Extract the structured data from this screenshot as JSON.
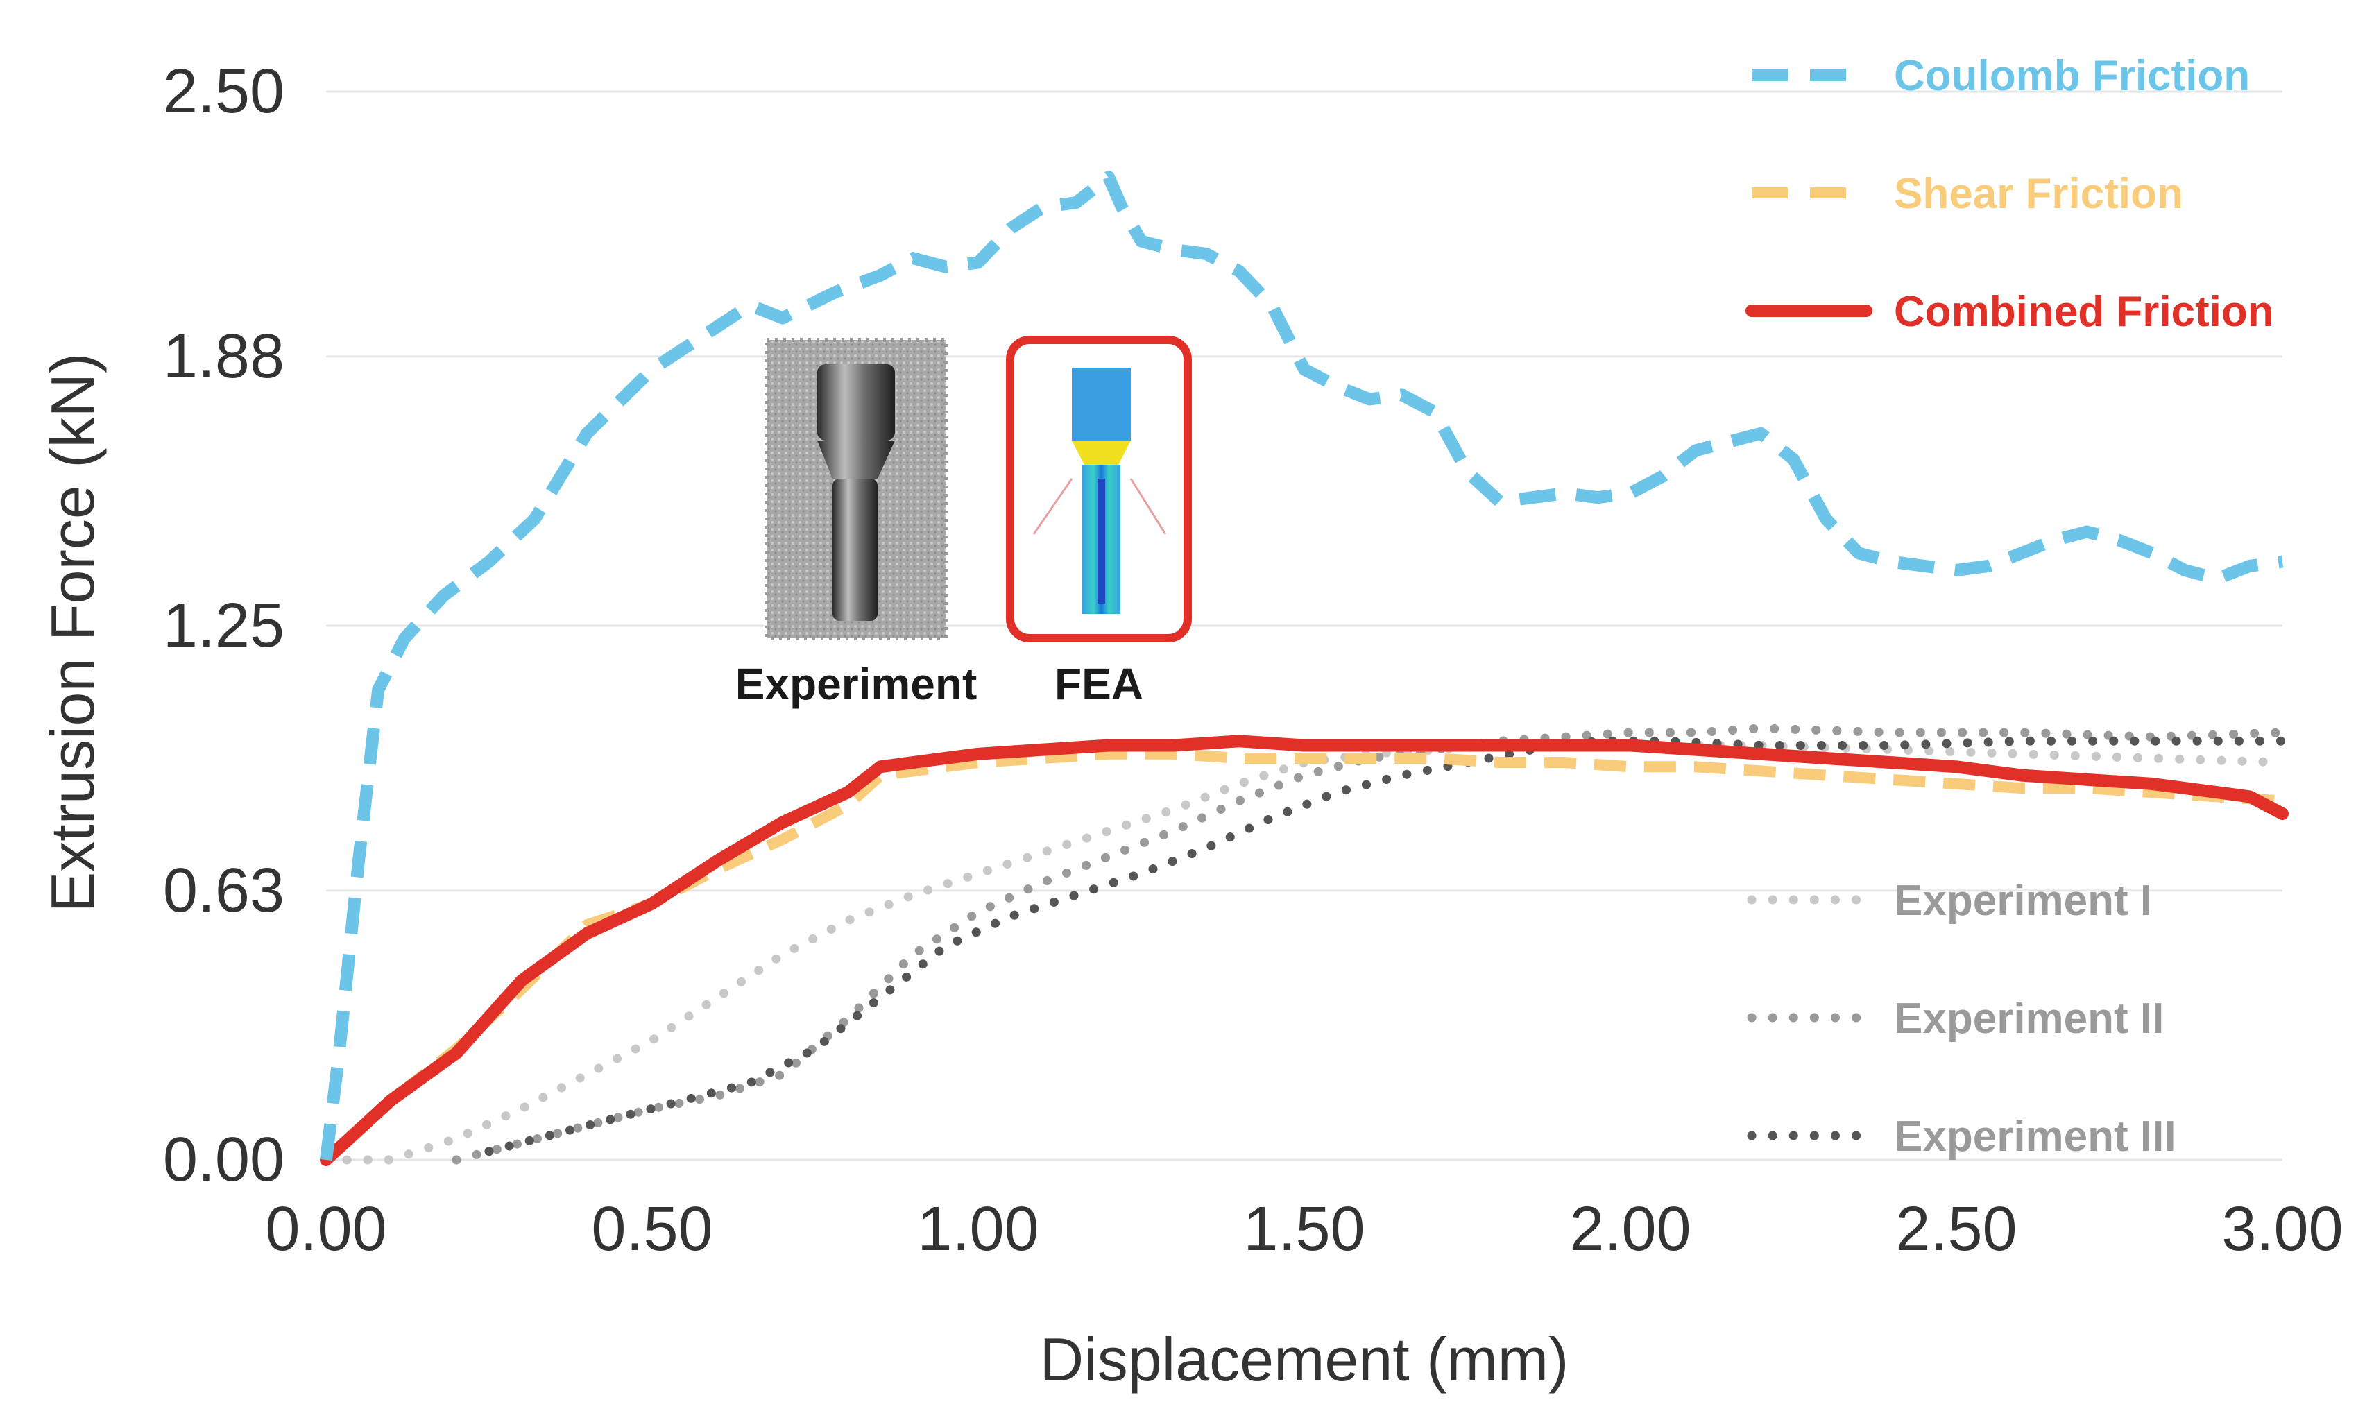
{
  "chart_data": {
    "type": "line",
    "title": "",
    "xlabel": "Displacement (mm)",
    "ylabel": "Extrusion Force (kN)",
    "xlim": [
      0,
      3
    ],
    "ylim": [
      0,
      2.5
    ],
    "x_ticks": [
      "0.00",
      "0.50",
      "1.00",
      "1.50",
      "2.00",
      "2.50",
      "3.00"
    ],
    "y_ticks": [
      "0.00",
      "0.63",
      "1.25",
      "1.88",
      "2.50"
    ],
    "grid": "horizontal",
    "legend_position": "right",
    "series": [
      {
        "name": "Coulomb Friction",
        "color": "#6cc4e8",
        "style": "dashed",
        "x": [
          0.0,
          0.02,
          0.05,
          0.08,
          0.12,
          0.18,
          0.25,
          0.32,
          0.4,
          0.5,
          0.58,
          0.65,
          0.7,
          0.78,
          0.85,
          0.9,
          0.95,
          1.0,
          1.05,
          1.1,
          1.15,
          1.2,
          1.22,
          1.25,
          1.3,
          1.35,
          1.4,
          1.45,
          1.5,
          1.55,
          1.6,
          1.65,
          1.7,
          1.75,
          1.8,
          1.85,
          1.9,
          1.95,
          2.0,
          2.05,
          2.1,
          2.15,
          2.2,
          2.25,
          2.3,
          2.35,
          2.4,
          2.45,
          2.5,
          2.55,
          2.6,
          2.65,
          2.7,
          2.75,
          2.8,
          2.85,
          2.9,
          2.95,
          3.0
        ],
        "values": [
          0.0,
          0.25,
          0.7,
          1.1,
          1.22,
          1.32,
          1.4,
          1.5,
          1.7,
          1.85,
          1.93,
          2.0,
          1.97,
          2.03,
          2.07,
          2.11,
          2.09,
          2.1,
          2.18,
          2.23,
          2.24,
          2.3,
          2.23,
          2.15,
          2.13,
          2.12,
          2.08,
          2.0,
          1.85,
          1.81,
          1.78,
          1.79,
          1.75,
          1.61,
          1.54,
          1.55,
          1.56,
          1.55,
          1.56,
          1.6,
          1.66,
          1.68,
          1.7,
          1.64,
          1.5,
          1.42,
          1.4,
          1.39,
          1.38,
          1.39,
          1.42,
          1.45,
          1.47,
          1.45,
          1.42,
          1.38,
          1.36,
          1.39,
          1.4
        ]
      },
      {
        "name": "Shear Friction",
        "color": "#f8cc7a",
        "style": "dashed",
        "x": [
          0.0,
          0.1,
          0.2,
          0.3,
          0.4,
          0.5,
          0.6,
          0.7,
          0.8,
          0.85,
          0.9,
          1.0,
          1.1,
          1.2,
          1.3,
          1.4,
          1.5,
          1.6,
          1.7,
          1.8,
          1.9,
          2.0,
          2.1,
          2.2,
          2.3,
          2.4,
          2.5,
          2.6,
          2.7,
          2.8,
          2.9,
          3.0
        ],
        "values": [
          0.0,
          0.14,
          0.26,
          0.4,
          0.55,
          0.6,
          0.68,
          0.75,
          0.83,
          0.9,
          0.91,
          0.93,
          0.94,
          0.95,
          0.95,
          0.94,
          0.94,
          0.94,
          0.94,
          0.93,
          0.93,
          0.92,
          0.92,
          0.91,
          0.9,
          0.89,
          0.88,
          0.87,
          0.87,
          0.86,
          0.85,
          0.84
        ]
      },
      {
        "name": "Combined Friction",
        "color": "#e03028",
        "style": "solid",
        "x": [
          0.0,
          0.1,
          0.2,
          0.3,
          0.4,
          0.5,
          0.6,
          0.7,
          0.8,
          0.85,
          0.9,
          1.0,
          1.1,
          1.2,
          1.3,
          1.4,
          1.5,
          1.6,
          1.7,
          1.8,
          1.9,
          2.0,
          2.1,
          2.2,
          2.3,
          2.4,
          2.5,
          2.6,
          2.7,
          2.8,
          2.9,
          2.95,
          3.0
        ],
        "values": [
          0.0,
          0.14,
          0.25,
          0.42,
          0.53,
          0.6,
          0.7,
          0.79,
          0.86,
          0.92,
          0.93,
          0.95,
          0.96,
          0.97,
          0.97,
          0.98,
          0.97,
          0.97,
          0.97,
          0.97,
          0.97,
          0.97,
          0.96,
          0.95,
          0.94,
          0.93,
          0.92,
          0.9,
          0.89,
          0.88,
          0.86,
          0.85,
          0.81
        ]
      },
      {
        "name": "Experiment I",
        "color": "#c8c8c8",
        "style": "dotted",
        "x": [
          0.0,
          0.1,
          0.2,
          0.3,
          0.4,
          0.5,
          0.6,
          0.7,
          0.8,
          0.9,
          1.0,
          1.1,
          1.2,
          1.3,
          1.4,
          1.5,
          1.6,
          1.7,
          1.8,
          1.9,
          2.0,
          2.2,
          2.4,
          2.6,
          2.8,
          3.0
        ],
        "values": [
          0.0,
          0.0,
          0.05,
          0.12,
          0.2,
          0.28,
          0.38,
          0.48,
          0.56,
          0.62,
          0.67,
          0.72,
          0.77,
          0.82,
          0.88,
          0.93,
          0.95,
          0.96,
          0.97,
          0.97,
          0.97,
          0.97,
          0.96,
          0.95,
          0.94,
          0.93
        ]
      },
      {
        "name": "Experiment II",
        "color": "#9a9a9a",
        "style": "dotted",
        "x": [
          0.2,
          0.3,
          0.4,
          0.5,
          0.6,
          0.7,
          0.8,
          0.9,
          1.0,
          1.1,
          1.2,
          1.3,
          1.4,
          1.5,
          1.6,
          1.7,
          1.8,
          1.9,
          2.0,
          2.1,
          2.2,
          2.4,
          2.6,
          2.8,
          3.0
        ],
        "values": [
          0.0,
          0.04,
          0.08,
          0.12,
          0.15,
          0.2,
          0.33,
          0.48,
          0.58,
          0.65,
          0.71,
          0.77,
          0.84,
          0.9,
          0.94,
          0.96,
          0.98,
          0.99,
          1.0,
          1.0,
          1.01,
          1.0,
          1.0,
          0.99,
          1.0
        ]
      },
      {
        "name": "Experiment III",
        "color": "#555555",
        "style": "dotted",
        "x": [
          0.25,
          0.35,
          0.45,
          0.55,
          0.65,
          0.75,
          0.85,
          0.95,
          1.05,
          1.15,
          1.25,
          1.35,
          1.45,
          1.55,
          1.65,
          1.75,
          1.85,
          1.95,
          2.05,
          2.2,
          2.4,
          2.6,
          2.8,
          3.0
        ],
        "values": [
          0.02,
          0.06,
          0.1,
          0.14,
          0.18,
          0.26,
          0.38,
          0.5,
          0.57,
          0.62,
          0.67,
          0.73,
          0.8,
          0.86,
          0.9,
          0.93,
          0.96,
          0.98,
          0.98,
          0.97,
          0.97,
          0.98,
          0.98,
          0.98
        ]
      }
    ],
    "annotations": [
      {
        "name": "experiment-inset",
        "label": "Experiment"
      },
      {
        "name": "fea-inset",
        "label": "FEA"
      }
    ]
  }
}
